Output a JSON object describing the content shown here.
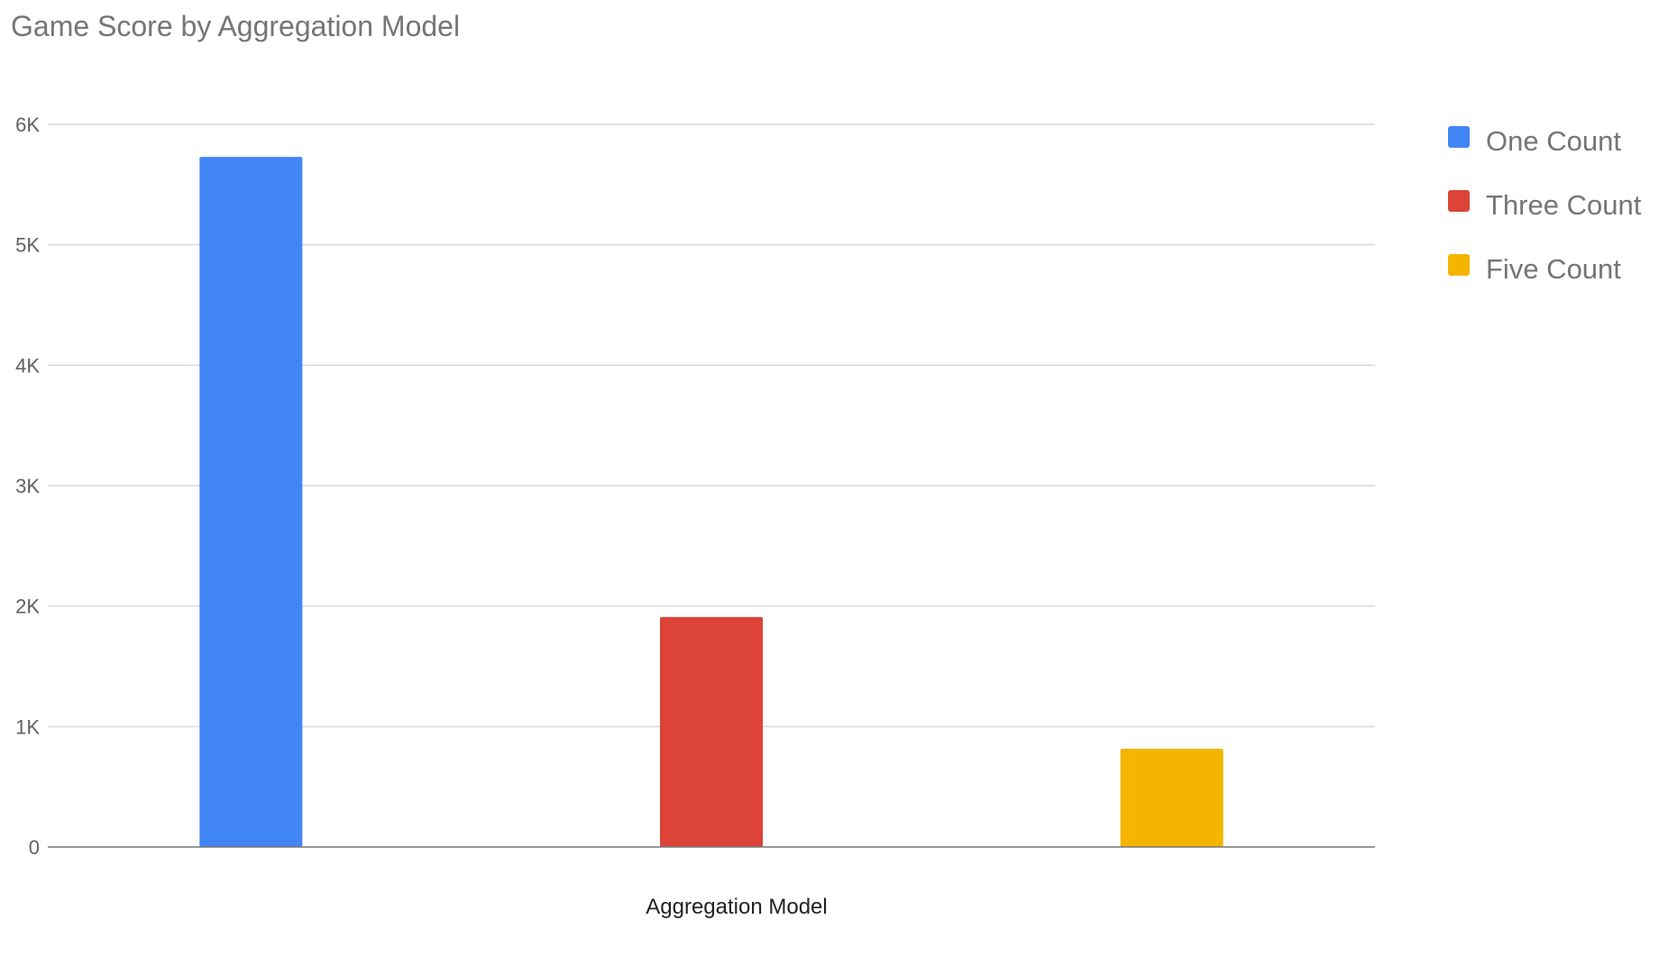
{
  "chart_data": {
    "type": "bar",
    "title": "Game Score by Aggregation Model",
    "xlabel": "Aggregation Model",
    "ylabel": "",
    "ylim": [
      0,
      6000
    ],
    "yticks": [
      {
        "value": 0,
        "label": "0"
      },
      {
        "value": 1000,
        "label": "1K"
      },
      {
        "value": 2000,
        "label": "2K"
      },
      {
        "value": 3000,
        "label": "3K"
      },
      {
        "value": 4000,
        "label": "4K"
      },
      {
        "value": 5000,
        "label": "5K"
      },
      {
        "value": 6000,
        "label": "6K"
      }
    ],
    "grid": true,
    "legend": "right",
    "series": [
      {
        "name": "One Count",
        "value": 5730,
        "color": "#4285f4"
      },
      {
        "name": "Three Count",
        "value": 1910,
        "color": "#db4437"
      },
      {
        "name": "Five Count",
        "value": 815,
        "color": "#f4b400"
      }
    ]
  }
}
